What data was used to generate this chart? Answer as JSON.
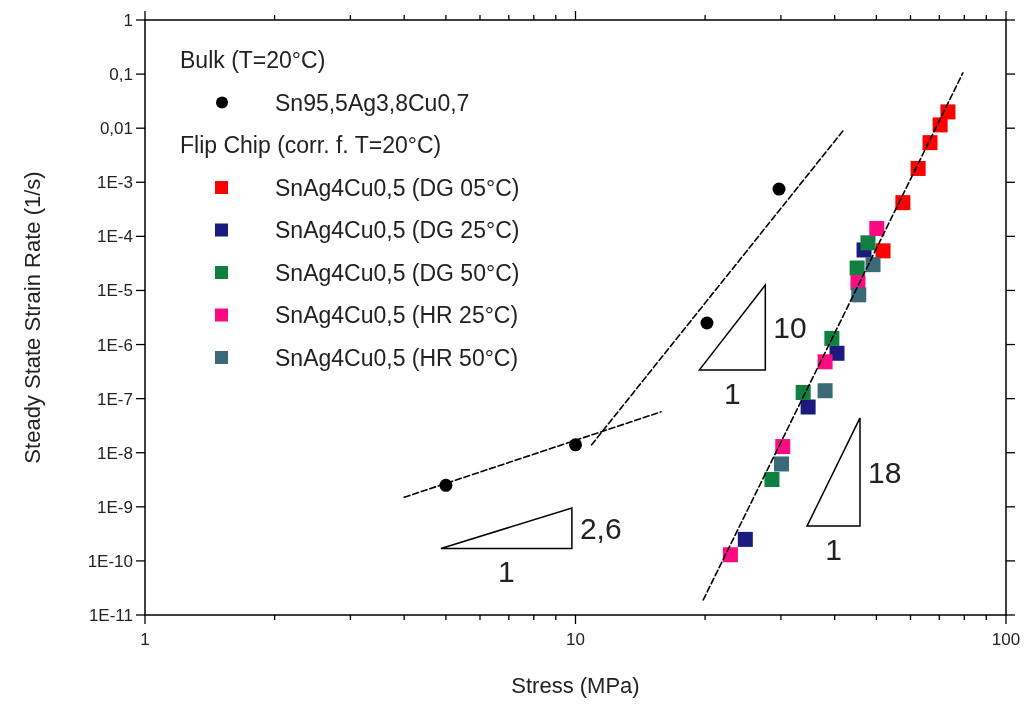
{
  "chart_data": {
    "type": "scatter",
    "xlabel": "Stress (MPa)",
    "ylabel": "Steady State Strain Rate (1/s)",
    "log": "xy",
    "xlim": [
      1,
      100
    ],
    "ylim": [
      1e-11,
      1
    ],
    "xticks": [
      1,
      {
        "value": 2,
        "label": null
      },
      {
        "value": 3,
        "label": null
      },
      {
        "value": 4,
        "label": null
      },
      {
        "value": 5,
        "label": null
      },
      {
        "value": 6,
        "label": null
      },
      {
        "value": 7,
        "label": null
      },
      {
        "value": 8,
        "label": null
      },
      {
        "value": 9,
        "label": null
      },
      10,
      {
        "value": 20,
        "label": null
      },
      {
        "value": 30,
        "label": null
      },
      {
        "value": 40,
        "label": null
      },
      {
        "value": 50,
        "label": null
      },
      {
        "value": 60,
        "label": null
      },
      {
        "value": 70,
        "label": null
      },
      {
        "value": 80,
        "label": null
      },
      {
        "value": 90,
        "label": null
      },
      100
    ],
    "yticks": [
      {
        "value": 1e-11,
        "label": "1E-11"
      },
      {
        "value": 1e-10,
        "label": "1E-10"
      },
      {
        "value": 1e-09,
        "label": "1E-9"
      },
      {
        "value": 1e-08,
        "label": "1E-8"
      },
      {
        "value": 1e-07,
        "label": "1E-7"
      },
      {
        "value": 1e-06,
        "label": "1E-6"
      },
      {
        "value": 1e-05,
        "label": "1E-5"
      },
      {
        "value": 0.0001,
        "label": "1E-4"
      },
      {
        "value": 0.001,
        "label": "1E-3"
      },
      {
        "value": 0.01,
        "label": "0,01"
      },
      {
        "value": 0.1,
        "label": "0,1"
      },
      1
    ],
    "legend": "top left",
    "grid": false,
    "series": [
      {
        "name": "Sn95,5Ag3,8Cu0,7",
        "marker": "circle",
        "color": "#000000",
        "x": [
          5.0,
          10.0,
          20.2,
          29.7
        ],
        "values": [
          2.5e-09,
          1.4e-08,
          2.5e-06,
          0.00075
        ]
      },
      {
        "name": "SnAg4Cu0,5 (DG 05°C)",
        "marker": "square",
        "color": "#ff0000",
        "x": [
          51.8,
          57.6,
          62.5,
          66.6,
          70.3,
          73.3
        ],
        "values": [
          5.4e-05,
          0.00042,
          0.0018,
          0.0054,
          0.0115,
          0.02
        ]
      },
      {
        "name": "SnAg4Cu0,5 (DG 25°C)",
        "marker": "square",
        "color": "#1a1a80",
        "x": [
          24.8,
          34.7,
          40.5,
          46.8
        ],
        "values": [
          2.5e-10,
          7e-08,
          6.9e-07,
          5.6e-05
        ]
      },
      {
        "name": "SnAg4Cu0,5 (DG 50°C)",
        "marker": "square",
        "color": "#108040",
        "x": [
          28.6,
          33.8,
          39.4,
          45.1,
          47.8
        ],
        "values": [
          3.2e-09,
          1.3e-07,
          1.3e-06,
          2.6e-05,
          7.6e-05
        ]
      },
      {
        "name": "SnAg4Cu0,5 (HR 25°C)",
        "marker": "square",
        "color": "#ff0a80",
        "x": [
          22.9,
          30.3,
          38.0,
          45.3,
          50.1
        ],
        "values": [
          1.3e-10,
          1.3e-08,
          4.8e-07,
          1.4e-05,
          0.00014
        ]
      },
      {
        "name": "SnAg4Cu0,5 (HR 50°C)",
        "marker": "square",
        "color": "#3a6a78",
        "x": [
          30.1,
          38.0,
          45.5,
          49.1
        ],
        "values": [
          6.2e-09,
          1.4e-07,
          8.3e-06,
          3e-05
        ]
      },
      {
        "type": "line",
        "marker": "none",
        "line_style": "dashed",
        "color": "#000000",
        "x": [
          4.0,
          15.8
        ],
        "values": [
          1.5e-09,
          5.7e-08
        ]
      },
      {
        "type": "line",
        "marker": "none",
        "line_style": "dashed",
        "color": "#000000",
        "x": [
          10.9,
          41.8
        ],
        "values": [
          1.4e-08,
          0.0089
        ]
      },
      {
        "type": "line",
        "marker": "none",
        "line_style": "dashed",
        "color": "#000000",
        "x": [
          19.8,
          79.4
        ],
        "values": [
          1.9e-11,
          0.105
        ]
      }
    ],
    "annotations": [
      "Bulk (T=20°C)",
      "Flip Chip (corr. f. T=20°C)",
      "2,6",
      "1",
      "10",
      "1",
      "18",
      "1"
    ]
  }
}
